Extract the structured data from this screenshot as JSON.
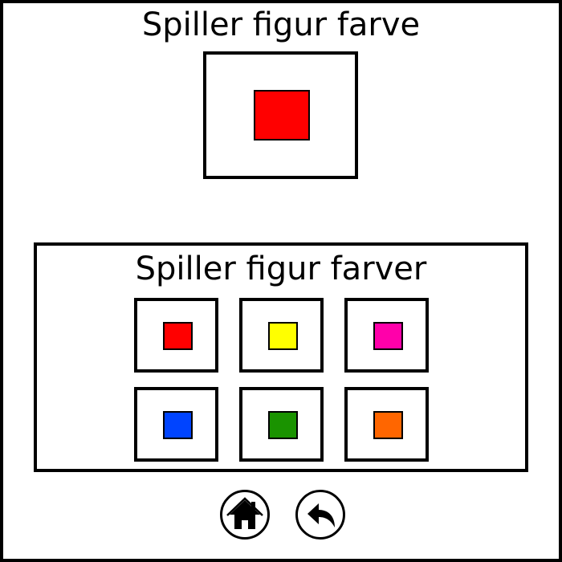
{
  "current": {
    "title": "Spiller figur farve",
    "color_name": "red",
    "color": "#ff0000"
  },
  "options": {
    "title": "Spiller figur farver",
    "colors": [
      {
        "name": "red",
        "hex": "#ff0000"
      },
      {
        "name": "yellow",
        "hex": "#ffff00"
      },
      {
        "name": "magenta",
        "hex": "#ff00aa"
      },
      {
        "name": "blue",
        "hex": "#0044ff"
      },
      {
        "name": "green",
        "hex": "#1a9300"
      },
      {
        "name": "orange",
        "hex": "#ff6600"
      }
    ]
  },
  "nav": {
    "home_icon": "home-icon",
    "back_icon": "back-arrow-icon"
  }
}
